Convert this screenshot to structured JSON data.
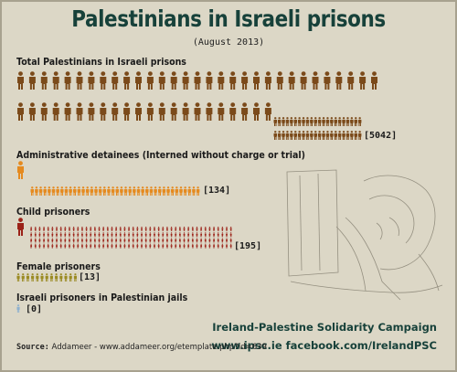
{
  "header": {
    "title": "Palestinians in Israeli prisons",
    "date": "(August 2013)"
  },
  "chart_data": {
    "type": "pictogram",
    "title": "Palestinians in Israeli prisons",
    "subtitle": "(August 2013)",
    "categories": [
      "Total Palestinians in Israeli prisons",
      "Administrative detainees (Interned without charge or trial)",
      "Child prisoners",
      "Female prisoners",
      "Israeli prisoners in Palestinian jails"
    ],
    "values": [
      5042,
      134,
      195,
      13,
      0
    ],
    "labels": [
      "[5042]",
      "[134]",
      "[195]",
      "[13]",
      "[0]"
    ]
  },
  "sections": [
    {
      "label": "Total Palestinians in Israeli prisons",
      "count": "[5042]",
      "color": "#7b4a1a"
    },
    {
      "label": "Administrative detainees (Interned without charge or trial)",
      "count": "[134]",
      "color": "#e58a1f"
    },
    {
      "label": "Child prisoners",
      "count": "[195]",
      "color": "#9b2218"
    },
    {
      "label": "Female prisoners",
      "count": "[13]",
      "color": "#9a8a22"
    },
    {
      "label": "Israeli prisoners in Palestinian jails",
      "count": "[0]",
      "color": "#8fb1cf"
    }
  ],
  "footer": {
    "source_label": "Source:",
    "source_text": "Addameer - www.addameer.org/etemplate.php?id=639",
    "campaign": "Ireland-Palestine Solidarity Campaign",
    "links": "www.ipsc.ie   facebook.com/IrelandPSC"
  },
  "icons": {
    "person": "person-icon",
    "sketch": "sketch-illustration"
  }
}
